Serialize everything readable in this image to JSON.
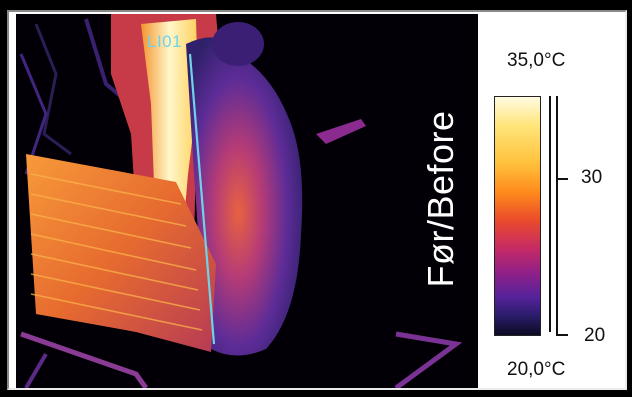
{
  "image": {
    "overlay_label": "Før/Before",
    "measurement_line_label": "LI01"
  },
  "legend": {
    "max_temp": "35,0°C",
    "min_temp": "20,0°C",
    "tick_labels": [
      "30",
      "20"
    ],
    "palette": "ironbow"
  },
  "colors": {
    "background": "#000000",
    "line": "#6fd3e8",
    "panel": "#ffffff"
  }
}
